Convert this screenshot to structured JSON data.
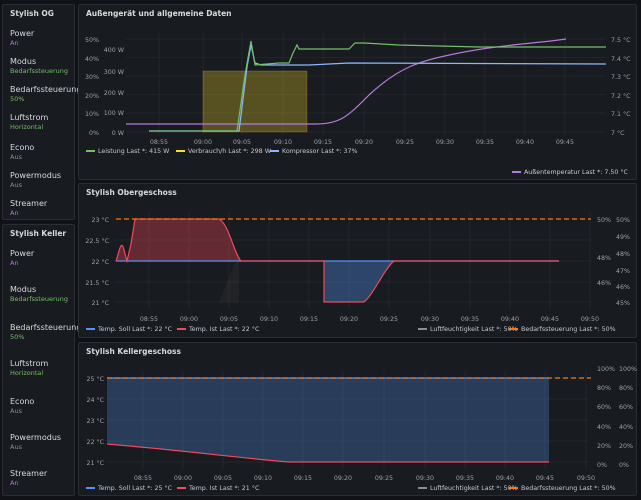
{
  "sidebar_og": {
    "title": "Stylish OG",
    "items": [
      {
        "label": "Power",
        "value": "An",
        "color": "#b877d9"
      },
      {
        "label": "Modus",
        "value": "Bedarfssteuerung",
        "color": "#73bf69"
      },
      {
        "label": "Bedarfssteuerung",
        "value": "50%",
        "color": "#73bf69"
      },
      {
        "label": "Luftstrom",
        "value": "Horizontal",
        "color": "#73bf69"
      },
      {
        "label": "Econo",
        "value": "Aus",
        "color": "#8e8e8e"
      },
      {
        "label": "Powermodus",
        "value": "Aus",
        "color": "#8e8e8e"
      },
      {
        "label": "Streamer",
        "value": "An",
        "color": "#b877d9"
      }
    ]
  },
  "sidebar_keller": {
    "title": "Stylish Keller",
    "items": [
      {
        "label": "Power",
        "value": "An",
        "color": "#b877d9"
      },
      {
        "label": "Modus",
        "value": "Bedarfssteuerung",
        "color": "#73bf69"
      },
      {
        "label": "Bedarfssteuerung",
        "value": "50%",
        "color": "#73bf69"
      },
      {
        "label": "Luftstrom",
        "value": "Horizontal",
        "color": "#73bf69"
      },
      {
        "label": "Econo",
        "value": "Aus",
        "color": "#8e8e8e"
      },
      {
        "label": "Powermodus",
        "value": "Aus",
        "color": "#8e8e8e"
      },
      {
        "label": "Streamer",
        "value": "An",
        "color": "#b877d9"
      }
    ]
  },
  "panels": {
    "aussen": {
      "title": "Außengerät und allgemeine Daten",
      "y_left_pct": [
        "50%",
        "40%",
        "30%",
        "20%",
        "10%",
        "0%"
      ],
      "y_left_w": [
        "400 W",
        "300 W",
        "200 W",
        "100 W",
        "0 W"
      ],
      "y_right": [
        "7.5 °C",
        "7.4 °C",
        "7.3 °C",
        "7.2 °C",
        "7.1 °C",
        "7 °C"
      ],
      "x_ticks": [
        "08:55",
        "09:00",
        "09:05",
        "09:10",
        "09:15",
        "09:20",
        "09:25",
        "09:30",
        "09:35",
        "09:40",
        "09:45"
      ],
      "legend": [
        {
          "label": "Leistung  Last *: 415 W",
          "color": "#73bf69"
        },
        {
          "label": "Verbrauch/h  Last *: 298 W",
          "color": "#fade2a"
        },
        {
          "label": "Kompressor  Last *: 37%",
          "color": "#8ab8ff"
        },
        {
          "label": "Außentemperatur  Last *: 7.50 °C",
          "color": "#b877d9"
        }
      ]
    },
    "ober": {
      "title": "Stylish Obergeschoss",
      "y_left": [
        "23 °C",
        "22.5 °C",
        "22 °C",
        "21.5 °C",
        "21 °C"
      ],
      "y_right_pct": [
        "50%",
        "49%",
        "48%",
        "47%",
        "46%",
        "45%"
      ],
      "y_right_pct2": [
        "50%",
        "48%",
        "46%"
      ],
      "x_ticks": [
        "08:55",
        "09:00",
        "09:05",
        "09:10",
        "09:15",
        "09:20",
        "09:25",
        "09:30",
        "09:35",
        "09:40",
        "09:45",
        "09:50"
      ],
      "legend": [
        {
          "label": "Temp. Soll  Last *: 22 °C",
          "color": "#5794f2"
        },
        {
          "label": "Temp. Ist  Last *: 22 °C",
          "color": "#f2495c"
        },
        {
          "label": "Luftfeuchtigkeit  Last *: 50%",
          "color": "#8e8e8e"
        },
        {
          "label": "Bedarfssteuerung  Last *: 50%",
          "color": "#ff780a"
        }
      ]
    },
    "kellergeschoss": {
      "title": "Stylish Kellergeschoss",
      "y_left": [
        "25 °C",
        "24 °C",
        "23 °C",
        "22 °C",
        "21 °C"
      ],
      "y_right_pct": [
        "100%",
        "80%",
        "60%",
        "40%",
        "20%",
        "0%"
      ],
      "x_ticks": [
        "08:55",
        "09:00",
        "09:05",
        "09:10",
        "09:15",
        "09:20",
        "09:25",
        "09:30",
        "09:35",
        "09:40",
        "09:45",
        "09:50"
      ],
      "legend": [
        {
          "label": "Temp. Soll  Last *: 25 °C",
          "color": "#5794f2"
        },
        {
          "label": "Temp. Ist  Last *: 21 °C",
          "color": "#f2495c"
        },
        {
          "label": "Luftfeuchtigkeit  Last *: 50%",
          "color": "#8e8e8e"
        },
        {
          "label": "Bedarfssteuerung  Last *: 50%",
          "color": "#ff780a"
        }
      ]
    }
  }
}
